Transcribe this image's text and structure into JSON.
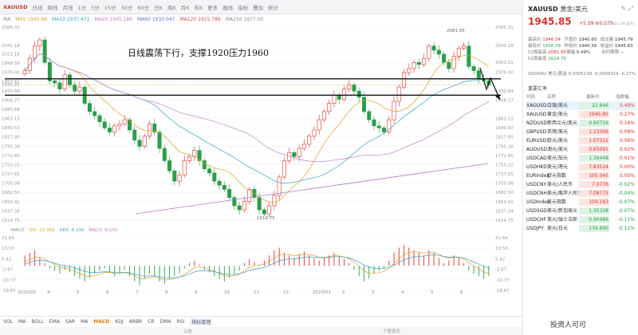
{
  "topbar": {
    "items": [
      "XAUUSD",
      "日线",
      "周线",
      "月线",
      "1分",
      "5分",
      "15分",
      "30分",
      "60分",
      "日K",
      "周K",
      "月K",
      "年K",
      "更多",
      "画线",
      "指标",
      "叠加",
      "统计"
    ],
    "right_tool": "画线"
  },
  "ma_row": {
    "label": "MA",
    "ma1": "MA5 1945.86",
    "ma2": "MA10 1937.471",
    "ma3": "MA20 1945.186",
    "ma4": "MA60 1933.047",
    "ma5": "MA120 1915.789",
    "ma6": "MA250 1877.00"
  },
  "annotation": "日线震荡下行，支撑1920压力1960",
  "price_axis": [
    "2086.31",
    "2041.18",
    "2001.01",
    "1976.00",
    "1930.84",
    "1908.27",
    "1863.13",
    "1840.60",
    "1817.95",
    "1795.38",
    "1772.80",
    "1750.22",
    "1727.65",
    "1705.08",
    "1682.50",
    "1659.91",
    "1637.34",
    "1614.75"
  ],
  "left_axis": [
    "2086.31",
    "2041.18",
    "2021.18",
    "1998.58",
    "1976.00",
    "1953.41",
    "1945.85",
    "1930.84",
    "1908.27",
    "1885.68",
    "1863.13",
    "1840.53",
    "1817.95",
    "1795.38",
    "1772.80",
    "1750.22",
    "1727.65",
    "1705.08",
    "1682.50",
    "1659.91",
    "1637.34",
    "1614.75"
  ],
  "marks": {
    "high_label": "2081.95",
    "low_label": "1614.75"
  },
  "levels": {
    "resistance": 1960,
    "support": 1920
  },
  "chart_data": {
    "type": "candlestick",
    "ylim": [
      1614.75,
      2086.31
    ],
    "x_ticks": [
      "2022/03",
      "4",
      "5",
      "6",
      "7",
      "8",
      "9",
      "10",
      "11",
      "12",
      "2023/01",
      "2",
      "3",
      "4",
      "5",
      "6"
    ],
    "close": [
      1980,
      2010,
      2040,
      2055,
      2000,
      1955,
      1950,
      1935,
      1970,
      1945,
      1930,
      1940,
      1900,
      1880,
      1870,
      1855,
      1840,
      1830,
      1845,
      1850,
      1860,
      1835,
      1810,
      1795,
      1820,
      1850,
      1830,
      1790,
      1760,
      1735,
      1710,
      1725,
      1760,
      1770,
      1785,
      1760,
      1740,
      1730,
      1710,
      1700,
      1690,
      1670,
      1650,
      1640,
      1660,
      1690,
      1670,
      1640,
      1630,
      1650,
      1675,
      1720,
      1760,
      1780,
      1770,
      1790,
      1800,
      1820,
      1835,
      1860,
      1880,
      1900,
      1920,
      1910,
      1935,
      1945,
      1930,
      1915,
      1880,
      1860,
      1845,
      1840,
      1830,
      1860,
      1905,
      1940,
      1975,
      1985,
      2000,
      1995,
      2010,
      2040,
      2030,
      2020,
      2000,
      1985,
      2015,
      2035,
      2040,
      1990,
      1980,
      1960,
      1955,
      1945
    ]
  },
  "macd": {
    "label": "MACD",
    "dif": "DIF -10.369",
    "dea": "DEA -6.216",
    "macd": "MACD -8.150",
    "axis": [
      "21.64",
      "13.53",
      "5.42",
      "-2.67",
      "-10.77",
      "-18.87"
    ],
    "right_axis": [
      "21.64",
      "13.53",
      "5.42",
      "-2.67",
      "-10.77",
      "-18.87"
    ],
    "histogram": [
      8,
      10,
      12,
      6,
      2,
      -2,
      -4,
      -6,
      -3,
      -5,
      -8,
      -10,
      -12,
      -9,
      -6,
      -4,
      -2,
      -5,
      -8,
      -6,
      -3,
      -8,
      -12,
      -15,
      -10,
      -6,
      -8,
      -12,
      -14,
      -10,
      -8,
      -6,
      -2,
      2,
      4,
      1,
      -3,
      -5,
      -8,
      -10,
      -12,
      -9,
      -6,
      -4,
      2,
      5,
      3,
      1,
      4,
      8,
      12,
      14,
      10,
      8,
      6,
      9,
      11,
      8,
      6,
      4,
      6,
      8,
      10,
      7,
      5,
      2,
      -3,
      -8,
      -12,
      -10,
      -6,
      -4,
      -2,
      4,
      10,
      14,
      16,
      14,
      12,
      10,
      8,
      12,
      10,
      6,
      2,
      4,
      8,
      6,
      2,
      -4,
      -6,
      -8,
      -10,
      -8
    ]
  },
  "dates": [
    "2022/03",
    "4",
    "5",
    "6",
    "7",
    "8",
    "9",
    "10",
    "11",
    "12",
    "2023/01",
    "2",
    "3",
    "4",
    "5",
    "6"
  ],
  "bottombar": [
    "VOL",
    "MA",
    "BOLL",
    "EMA",
    "SAR",
    "MA",
    "MACD",
    "KDJ",
    "ARBR",
    "CR",
    "DMA",
    "RSI",
    "指标管理"
  ],
  "bottom_active": "MACD",
  "footbar": {
    "left": "公告",
    "right": "个股资讯"
  },
  "panel": {
    "symbol": "XAUUSD",
    "name": "黄金/美元",
    "price": "1945.85",
    "change": "+5.29  +0.27%",
    "time": "北京时间 05/25 21:36(美东)",
    "stats": [
      [
        "最高价",
        "1946.34",
        "开盘价",
        "1940.60",
        "成交量",
        "1945.79"
      ],
      [
        "最低价",
        "1936.79",
        "昨收价",
        "1940.56",
        "收益价",
        "1945.83"
      ],
      [
        "52周最高",
        "2081.95",
        "振幅",
        "0.49%",
        "合约期限",
        "--"
      ],
      [
        "52周最低",
        "1614.75",
        "",
        "",
        "",
        ""
      ]
    ],
    "pair_line": "USDXAU 美元/黄金  0.0005139  -0.0000014  -0.27%",
    "section_title": "重要汇率",
    "table_head": [
      "代码",
      "名称",
      "最新价",
      "涨跌幅"
    ],
    "rows": [
      {
        "code": "XAGUSD",
        "name": "白银/美元",
        "last": "22.846",
        "chg": "0.49%",
        "dir": "dn",
        "sel": true
      },
      {
        "code": "XAUUSD",
        "name": "黄金/美元",
        "last": "1945.85",
        "chg": "0.27%",
        "dir": "up"
      },
      {
        "code": "NZDUSD",
        "name": "新西兰元/美元",
        "last": "0.60726",
        "chg": "0.16%",
        "dir": "dn"
      },
      {
        "code": "GBPUSD",
        "name": "英镑/美元",
        "last": "1.23309",
        "chg": "0.08%",
        "dir": "up"
      },
      {
        "code": "EURUSD",
        "name": "欧元/美元",
        "last": "1.07312",
        "chg": "0.06%",
        "dir": "up"
      },
      {
        "code": "AUDUSD",
        "name": "澳元/美元",
        "last": "0.65061",
        "chg": "0.02%",
        "dir": "up"
      },
      {
        "code": "USDCAD",
        "name": "美元/加元",
        "last": "1.36448",
        "chg": "0.01%",
        "dir": "dn"
      },
      {
        "code": "USDHKD",
        "name": "美元/港元",
        "last": "7.83524",
        "chg": "0.00%",
        "dir": "up"
      },
      {
        "code": "EURIndex",
        "name": "欧元指数",
        "last": "105.045",
        "chg": "0.00%",
        "dir": "up"
      },
      {
        "code": "USDCNY",
        "name": "美元/人民币",
        "last": "7.0776",
        "chg": "-0.02%",
        "dir": "up"
      },
      {
        "code": "USDCNH",
        "name": "美元/离岸人民币",
        "last": "7.08775",
        "chg": "-0.04%",
        "dir": "up"
      },
      {
        "code": "USDIndex",
        "name": "美元指数",
        "last": "104.163",
        "chg": "-0.07%",
        "dir": "up"
      },
      {
        "code": "USDSGD",
        "name": "美元/新加坡元",
        "last": "1.35338",
        "chg": "-0.07%",
        "dir": "dn"
      },
      {
        "code": "USDCHF",
        "name": "美元/瑞士法郎",
        "last": "0.90486",
        "chg": "-0.11%",
        "dir": "dn"
      },
      {
        "code": "USDJPY",
        "name": "美元/日元",
        "last": "139.890",
        "chg": "-0.11%",
        "dir": "dn"
      }
    ]
  },
  "watermark": "投资人可可",
  "colors": {
    "up": "#d9322b",
    "down": "#2a9d4a",
    "accent": "#e07a00"
  }
}
